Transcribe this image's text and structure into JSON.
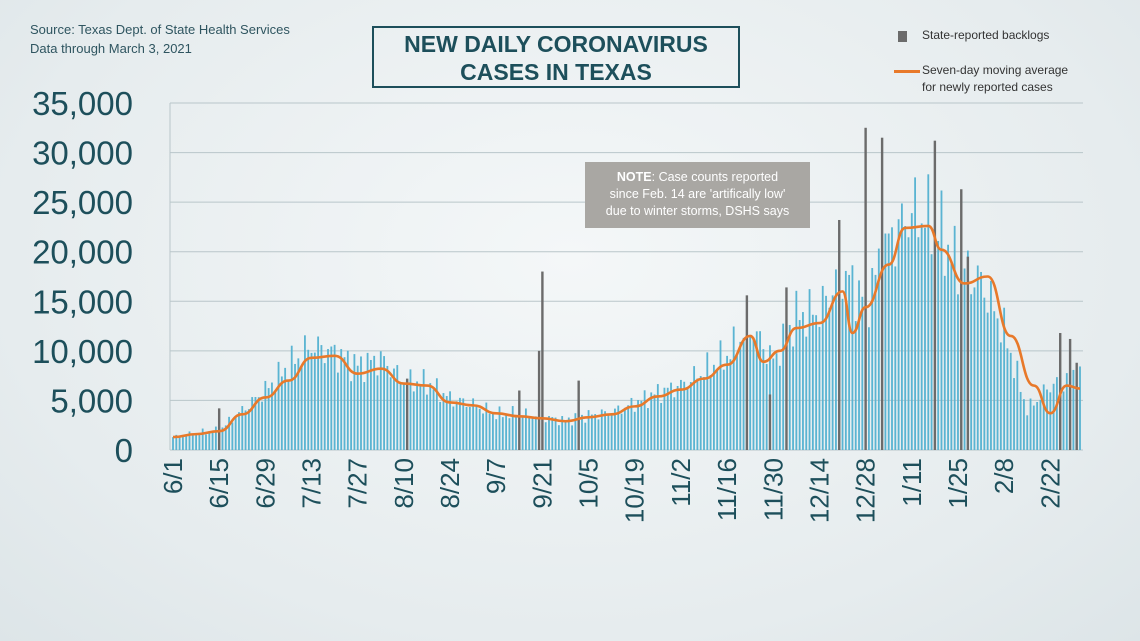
{
  "header": {
    "source_line": "Source: Texas Dept. of State Health Services",
    "data_through": "Data through  March 3, 2021",
    "title_line1": "NEW DAILY CORONAVIRUS",
    "title_line2": "CASES IN TEXAS"
  },
  "legend": {
    "backlogs": "State-reported backlogs",
    "average_line1": "Seven-day moving average",
    "average_line2": "for newly reported cases"
  },
  "note": {
    "label": "NOTE",
    "text_line1": ": Case counts reported",
    "text_line2": "since Feb. 14 are 'artifically low'",
    "text_line3": "due to winter storms, DSHS says"
  },
  "colors": {
    "bars": "#5ab4d2",
    "backlog": "#6b6b6b",
    "average": "#e8792a",
    "axis_text": "#1d4f5b",
    "grid": "#b9c6ca"
  },
  "chart_data": {
    "type": "bar",
    "title": "NEW DAILY CORONAVIRUS CASES IN TEXAS",
    "xlabel": "",
    "ylabel": "",
    "ylim": [
      0,
      35000
    ],
    "yticks": [
      0,
      5000,
      10000,
      15000,
      20000,
      25000,
      30000,
      35000
    ],
    "ytick_labels": [
      "0",
      "5,000",
      "10,000",
      "15,000",
      "20,000",
      "25,000",
      "30,000",
      "35,000"
    ],
    "xtick_labels": [
      "6/1",
      "6/15",
      "6/29",
      "7/13",
      "7/27",
      "8/10",
      "8/24",
      "9/7",
      "9/21",
      "10/5",
      "10/19",
      "11/2",
      "11/16",
      "11/30",
      "12/14",
      "12/28",
      "1/11",
      "1/25",
      "2/8",
      "2/22"
    ],
    "x_start": "2020-06-01",
    "x_end": "2021-03-03",
    "grid": true,
    "legend_position": "top-right",
    "series": [
      {
        "name": "State-reported backlogs",
        "type": "bar",
        "points": [
          {
            "date": "2020-09-20",
            "value": 10000
          },
          {
            "date": "2020-09-21",
            "value": 18000
          },
          {
            "date": "2020-12-28",
            "value": 32500
          },
          {
            "date": "2021-01-02",
            "value": 31500
          },
          {
            "date": "2021-01-18",
            "value": 31200
          },
          {
            "date": "2021-01-26",
            "value": 26300
          },
          {
            "date": "2021-01-28",
            "value": 19500
          },
          {
            "date": "2020-12-20",
            "value": 23200
          },
          {
            "date": "2020-11-22",
            "value": 15600
          },
          {
            "date": "2020-12-04",
            "value": 16400
          },
          {
            "date": "2020-11-29",
            "value": 5600
          },
          {
            "date": "2020-10-02",
            "value": 7000
          },
          {
            "date": "2020-08-11",
            "value": 7200
          },
          {
            "date": "2020-09-14",
            "value": 6000
          },
          {
            "date": "2021-02-25",
            "value": 11800
          },
          {
            "date": "2021-02-28",
            "value": 11200
          },
          {
            "date": "2021-03-02",
            "value": 8800
          },
          {
            "date": "2020-06-15",
            "value": 4200
          }
        ]
      },
      {
        "name": "Seven-day moving average for newly reported cases",
        "type": "line",
        "points": [
          {
            "date": "2020-06-01",
            "value": 1300
          },
          {
            "date": "2020-06-08",
            "value": 1600
          },
          {
            "date": "2020-06-15",
            "value": 1900
          },
          {
            "date": "2020-06-22",
            "value": 3600
          },
          {
            "date": "2020-06-29",
            "value": 5300
          },
          {
            "date": "2020-07-06",
            "value": 7000
          },
          {
            "date": "2020-07-13",
            "value": 9300
          },
          {
            "date": "2020-07-20",
            "value": 9500
          },
          {
            "date": "2020-07-27",
            "value": 7700
          },
          {
            "date": "2020-08-03",
            "value": 8200
          },
          {
            "date": "2020-08-10",
            "value": 6700
          },
          {
            "date": "2020-08-17",
            "value": 6500
          },
          {
            "date": "2020-08-24",
            "value": 4800
          },
          {
            "date": "2020-08-31",
            "value": 4500
          },
          {
            "date": "2020-09-07",
            "value": 3700
          },
          {
            "date": "2020-09-14",
            "value": 3400
          },
          {
            "date": "2020-09-21",
            "value": 3200
          },
          {
            "date": "2020-09-28",
            "value": 2900
          },
          {
            "date": "2020-10-05",
            "value": 3300
          },
          {
            "date": "2020-10-12",
            "value": 3600
          },
          {
            "date": "2020-10-19",
            "value": 4400
          },
          {
            "date": "2020-10-26",
            "value": 5400
          },
          {
            "date": "2020-11-02",
            "value": 6100
          },
          {
            "date": "2020-11-09",
            "value": 7200
          },
          {
            "date": "2020-11-16",
            "value": 8600
          },
          {
            "date": "2020-11-23",
            "value": 11500
          },
          {
            "date": "2020-11-27",
            "value": 8900
          },
          {
            "date": "2020-12-02",
            "value": 10000
          },
          {
            "date": "2020-12-07",
            "value": 12300
          },
          {
            "date": "2020-12-14",
            "value": 12800
          },
          {
            "date": "2020-12-21",
            "value": 16000
          },
          {
            "date": "2020-12-24",
            "value": 11800
          },
          {
            "date": "2020-12-28",
            "value": 14400
          },
          {
            "date": "2021-01-04",
            "value": 18700
          },
          {
            "date": "2021-01-09",
            "value": 22400
          },
          {
            "date": "2021-01-16",
            "value": 22600
          },
          {
            "date": "2021-01-20",
            "value": 20200
          },
          {
            "date": "2021-01-27",
            "value": 16800
          },
          {
            "date": "2021-02-03",
            "value": 17500
          },
          {
            "date": "2021-02-10",
            "value": 11500
          },
          {
            "date": "2021-02-17",
            "value": 6500
          },
          {
            "date": "2021-02-22",
            "value": 3700
          },
          {
            "date": "2021-02-27",
            "value": 6500
          },
          {
            "date": "2021-03-03",
            "value": 6200
          }
        ]
      },
      {
        "name": "New daily cases",
        "type": "bar",
        "daily_values_weekly_sampled": [
          {
            "date": "2020-06-01",
            "value": 1300
          },
          {
            "date": "2020-06-08",
            "value": 1700
          },
          {
            "date": "2020-06-15",
            "value": 2000
          },
          {
            "date": "2020-06-22",
            "value": 4000
          },
          {
            "date": "2020-06-29",
            "value": 6000
          },
          {
            "date": "2020-07-06",
            "value": 8500
          },
          {
            "date": "2020-07-13",
            "value": 10500
          },
          {
            "date": "2020-07-20",
            "value": 9800
          },
          {
            "date": "2020-07-27",
            "value": 8500
          },
          {
            "date": "2020-08-03",
            "value": 9200
          },
          {
            "date": "2020-08-10",
            "value": 7000
          },
          {
            "date": "2020-08-17",
            "value": 6800
          },
          {
            "date": "2020-08-24",
            "value": 5200
          },
          {
            "date": "2020-08-31",
            "value": 4600
          },
          {
            "date": "2020-09-07",
            "value": 3600
          },
          {
            "date": "2020-09-14",
            "value": 3700
          },
          {
            "date": "2020-09-21",
            "value": 3300
          },
          {
            "date": "2020-09-28",
            "value": 3000
          },
          {
            "date": "2020-10-05",
            "value": 3500
          },
          {
            "date": "2020-10-12",
            "value": 3800
          },
          {
            "date": "2020-10-19",
            "value": 4700
          },
          {
            "date": "2020-10-26",
            "value": 5800
          },
          {
            "date": "2020-11-02",
            "value": 6500
          },
          {
            "date": "2020-11-09",
            "value": 8000
          },
          {
            "date": "2020-11-16",
            "value": 9500
          },
          {
            "date": "2020-11-23",
            "value": 12500
          },
          {
            "date": "2020-11-30",
            "value": 9000
          },
          {
            "date": "2020-12-07",
            "value": 13500
          },
          {
            "date": "2020-12-14",
            "value": 14000
          },
          {
            "date": "2020-12-21",
            "value": 18000
          },
          {
            "date": "2020-12-28",
            "value": 15000
          },
          {
            "date": "2021-01-04",
            "value": 21000
          },
          {
            "date": "2021-01-11",
            "value": 24000
          },
          {
            "date": "2021-01-18",
            "value": 23000
          },
          {
            "date": "2021-01-25",
            "value": 18500
          },
          {
            "date": "2021-02-01",
            "value": 17000
          },
          {
            "date": "2021-02-08",
            "value": 12000
          },
          {
            "date": "2021-02-15",
            "value": 4000
          },
          {
            "date": "2021-02-22",
            "value": 6500
          },
          {
            "date": "2021-03-01",
            "value": 7500
          }
        ]
      }
    ]
  }
}
